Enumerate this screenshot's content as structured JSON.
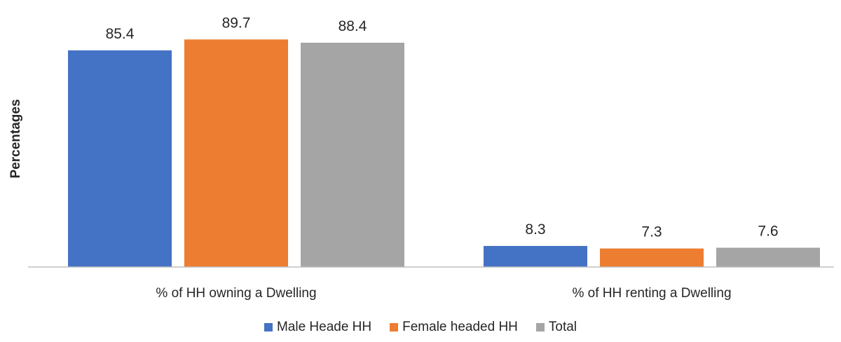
{
  "chart_data": {
    "type": "bar",
    "categories": [
      "% of HH owning a Dwelling",
      "% of HH renting a Dwelling"
    ],
    "series": [
      {
        "name": "Male Heade HH",
        "values": [
          85.4,
          8.3
        ],
        "color": "#4472C4"
      },
      {
        "name": "Female headed HH",
        "values": [
          89.7,
          7.3
        ],
        "color": "#ED7D31"
      },
      {
        "name": "Total",
        "values": [
          88.4,
          7.6
        ],
        "color": "#A5A5A5"
      }
    ],
    "value_labels": [
      [
        "85.4",
        "8.3"
      ],
      [
        "89.7",
        "7.3"
      ],
      [
        "88.4",
        "7.6"
      ]
    ],
    "title": "",
    "xlabel": "",
    "ylabel": "Percentages",
    "ylim": [
      0,
      100
    ],
    "grid": false,
    "legend_position": "bottom"
  }
}
